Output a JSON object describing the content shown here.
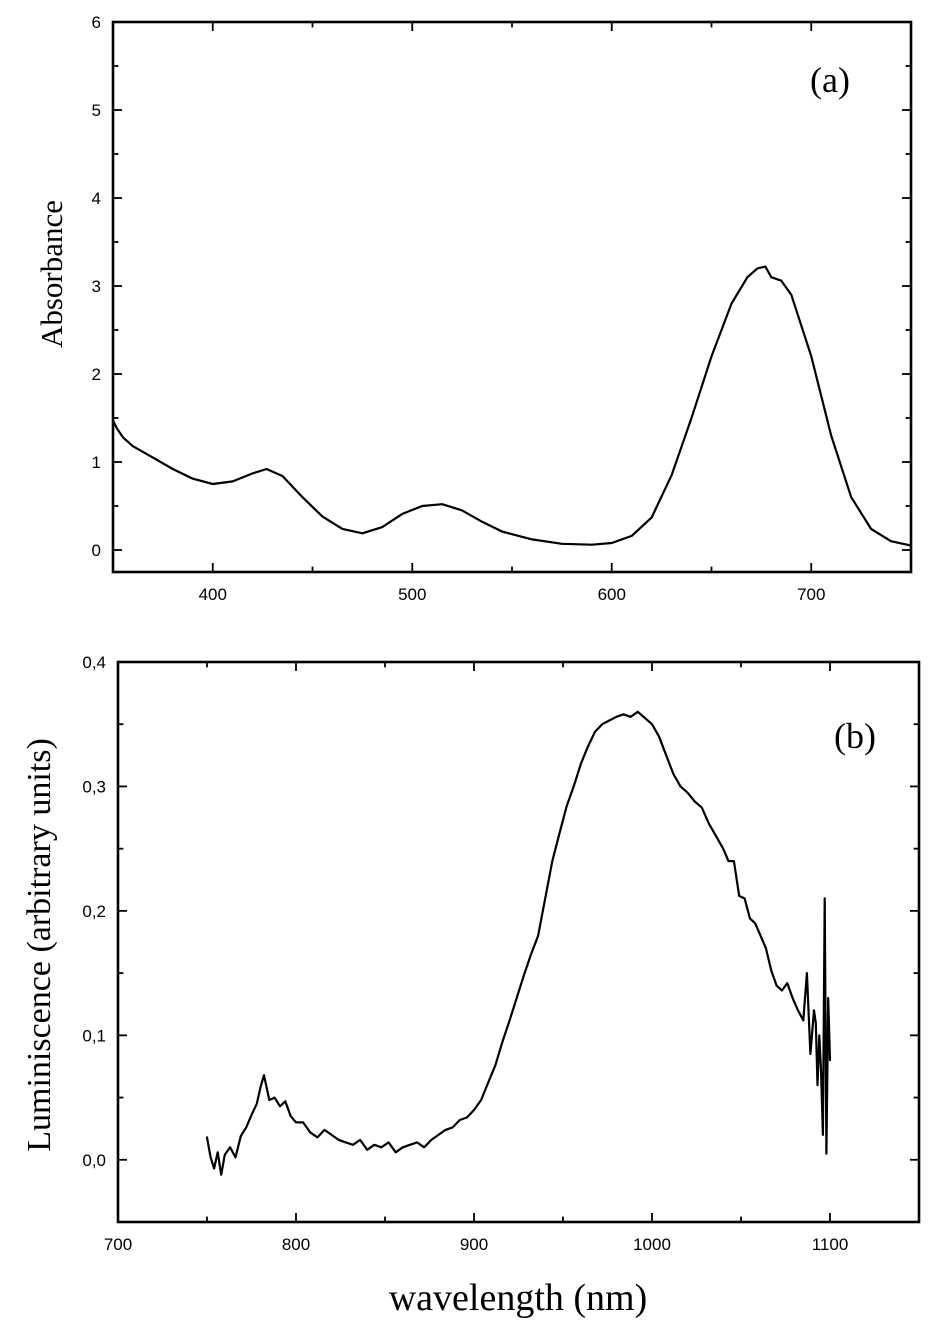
{
  "chart_data": [
    {
      "type": "line",
      "panel_label": "(a)",
      "xlabel": "",
      "ylabel": "Absorbance",
      "xlim": [
        350,
        750
      ],
      "ylim": [
        -0.25,
        6
      ],
      "x_ticks": [
        400,
        500,
        600,
        700
      ],
      "y_ticks": [
        0,
        1,
        2,
        3,
        4,
        5,
        6
      ],
      "grid": false,
      "series": [
        {
          "x": [
            350,
            352,
            355,
            360,
            370,
            380,
            390,
            400,
            410,
            420,
            427,
            435,
            445,
            455,
            465,
            475,
            485,
            495,
            505,
            515,
            525,
            535,
            545,
            560,
            575,
            590,
            600,
            610,
            620,
            630,
            640,
            650,
            660,
            668,
            673,
            677,
            680,
            685,
            690,
            700,
            710,
            720,
            730,
            740,
            750
          ],
          "y": [
            1.47,
            1.38,
            1.28,
            1.18,
            1.05,
            0.92,
            0.81,
            0.75,
            0.78,
            0.87,
            0.92,
            0.84,
            0.6,
            0.38,
            0.24,
            0.19,
            0.26,
            0.41,
            0.5,
            0.52,
            0.45,
            0.32,
            0.21,
            0.12,
            0.07,
            0.06,
            0.08,
            0.16,
            0.37,
            0.85,
            1.5,
            2.2,
            2.8,
            3.1,
            3.2,
            3.22,
            3.1,
            3.06,
            2.9,
            2.2,
            1.3,
            0.6,
            0.24,
            0.1,
            0.05
          ]
        }
      ]
    },
    {
      "type": "line",
      "panel_label": "(b)",
      "xlabel": "wavelength (nm)",
      "ylabel": "Luminiscence (arbitrary units)",
      "xlim": [
        700,
        1150
      ],
      "ylim": [
        -0.05,
        0.4
      ],
      "x_ticks": [
        700,
        800,
        900,
        1000,
        1100
      ],
      "y_ticks": [
        0.0,
        0.1,
        0.2,
        0.3,
        0.4
      ],
      "y_tick_labels": [
        "0,0",
        "0,1",
        "0,2",
        "0,3",
        "0,4"
      ],
      "grid": false,
      "series": [
        {
          "x": [
            750,
            752,
            754,
            756,
            758,
            760,
            763,
            766,
            769,
            772,
            775,
            778,
            780,
            782,
            785,
            788,
            791,
            794,
            797,
            800,
            804,
            808,
            812,
            816,
            820,
            824,
            828,
            832,
            836,
            840,
            844,
            848,
            852,
            856,
            860,
            864,
            868,
            872,
            876,
            880,
            884,
            888,
            892,
            896,
            900,
            904,
            908,
            912,
            916,
            920,
            924,
            928,
            932,
            936,
            940,
            944,
            948,
            952,
            956,
            960,
            964,
            968,
            972,
            976,
            980,
            984,
            988,
            992,
            996,
            1000,
            1004,
            1008,
            1012,
            1016,
            1020,
            1024,
            1028,
            1032,
            1036,
            1040,
            1043,
            1046,
            1049,
            1052,
            1055,
            1058,
            1061,
            1064,
            1067,
            1070,
            1073,
            1076,
            1079,
            1082,
            1085,
            1087,
            1089,
            1091,
            1092,
            1093,
            1094,
            1095,
            1096,
            1097,
            1098,
            1099,
            1100
          ],
          "y": [
            0.018,
            0.002,
            -0.007,
            0.006,
            -0.012,
            0.004,
            0.01,
            0.002,
            0.019,
            0.026,
            0.036,
            0.045,
            0.058,
            0.068,
            0.048,
            0.05,
            0.043,
            0.047,
            0.035,
            0.03,
            0.03,
            0.022,
            0.018,
            0.024,
            0.02,
            0.016,
            0.014,
            0.012,
            0.016,
            0.008,
            0.012,
            0.01,
            0.014,
            0.006,
            0.01,
            0.012,
            0.014,
            0.01,
            0.016,
            0.02,
            0.024,
            0.026,
            0.032,
            0.034,
            0.04,
            0.048,
            0.062,
            0.076,
            0.095,
            0.112,
            0.13,
            0.148,
            0.165,
            0.18,
            0.21,
            0.24,
            0.262,
            0.284,
            0.3,
            0.318,
            0.332,
            0.344,
            0.35,
            0.353,
            0.356,
            0.358,
            0.356,
            0.36,
            0.355,
            0.35,
            0.34,
            0.325,
            0.31,
            0.3,
            0.295,
            0.288,
            0.283,
            0.27,
            0.26,
            0.25,
            0.24,
            0.24,
            0.212,
            0.21,
            0.194,
            0.19,
            0.18,
            0.17,
            0.152,
            0.14,
            0.136,
            0.142,
            0.13,
            0.12,
            0.112,
            0.15,
            0.085,
            0.12,
            0.11,
            0.06,
            0.1,
            0.07,
            0.02,
            0.21,
            0.005,
            0.13,
            0.08
          ]
        }
      ]
    }
  ]
}
